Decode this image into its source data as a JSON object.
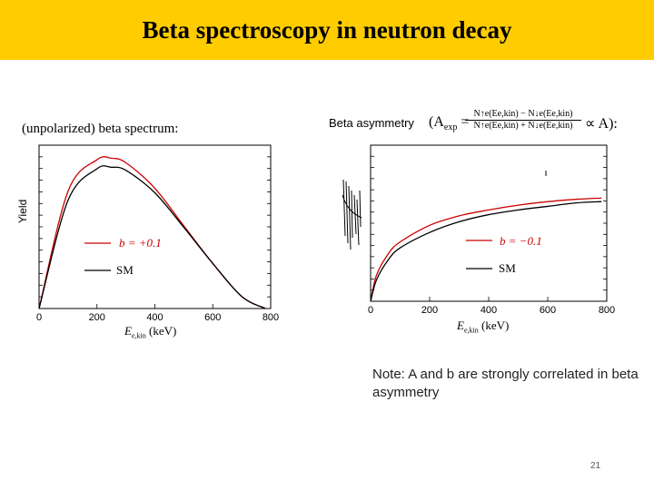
{
  "title": "Beta spectroscopy in neutron decay",
  "left_panel": {
    "label": "(unpolarized) beta spectrum:",
    "ylabel": "Yield",
    "xlabel_sym": "E",
    "xlabel_sub": "e,kin",
    "xlabel_unit": "(keV)",
    "xticks": [
      "0",
      "200",
      "400",
      "600",
      "800"
    ],
    "legend_b": "b = +0.1",
    "legend_sm": "SM"
  },
  "right_panel": {
    "asym_label": "Beta asymmetry",
    "asym_lhs": "(A",
    "asym_sub": "exp",
    "asym_num": "N↑e(Ee,kin) − N↓e(Ee,kin)",
    "asym_den": "N↑e(Ee,kin) + N↓e(Ee,kin)",
    "asym_rhs": "∝ A):",
    "xlabel_sym": "E",
    "xlabel_sub": "e,kin",
    "xlabel_unit": "(keV)",
    "xticks": [
      "0",
      "200",
      "400",
      "600",
      "800"
    ],
    "legend_b": "b = −0.1",
    "legend_sm": "SM"
  },
  "note": "Note: A and b are strongly correlated in beta asymmetry",
  "page_number": "21",
  "colors": {
    "title_bar": "#ffcc00",
    "b_curve": "#cc0000",
    "sm_curve": "#000000"
  },
  "chart_data": [
    {
      "type": "line",
      "xlabel": "Ee,kin (keV)",
      "ylabel": "Yield",
      "xlim": [
        0,
        782
      ],
      "grid": false,
      "legend": "bottom-left",
      "series": [
        {
          "name": "b = +0.1",
          "x": [
            0,
            100,
            200,
            250,
            300,
            400,
            500,
            600,
            700,
            782
          ],
          "y": [
            0,
            0.78,
            0.99,
            1.0,
            0.97,
            0.8,
            0.55,
            0.3,
            0.08,
            0
          ]
        },
        {
          "name": "SM",
          "x": [
            0,
            100,
            200,
            250,
            300,
            400,
            500,
            600,
            700,
            782
          ],
          "y": [
            0,
            0.72,
            0.93,
            0.94,
            0.92,
            0.77,
            0.54,
            0.3,
            0.08,
            0
          ]
        }
      ]
    },
    {
      "type": "line",
      "xlabel": "Ee,kin (keV)",
      "ylabel": "",
      "xlim": [
        0,
        800
      ],
      "grid": false,
      "legend": "bottom-right",
      "series": [
        {
          "name": "b = −0.1",
          "x": [
            0,
            20,
            60,
            100,
            200,
            300,
            400,
            500,
            600,
            700,
            782
          ],
          "y": [
            0,
            0.22,
            0.4,
            0.5,
            0.64,
            0.72,
            0.77,
            0.81,
            0.84,
            0.86,
            0.87
          ]
        },
        {
          "name": "SM",
          "x": [
            0,
            20,
            60,
            100,
            200,
            300,
            400,
            500,
            600,
            700,
            782
          ],
          "y": [
            0,
            0.18,
            0.35,
            0.45,
            0.58,
            0.67,
            0.73,
            0.77,
            0.8,
            0.83,
            0.84
          ]
        }
      ]
    }
  ]
}
